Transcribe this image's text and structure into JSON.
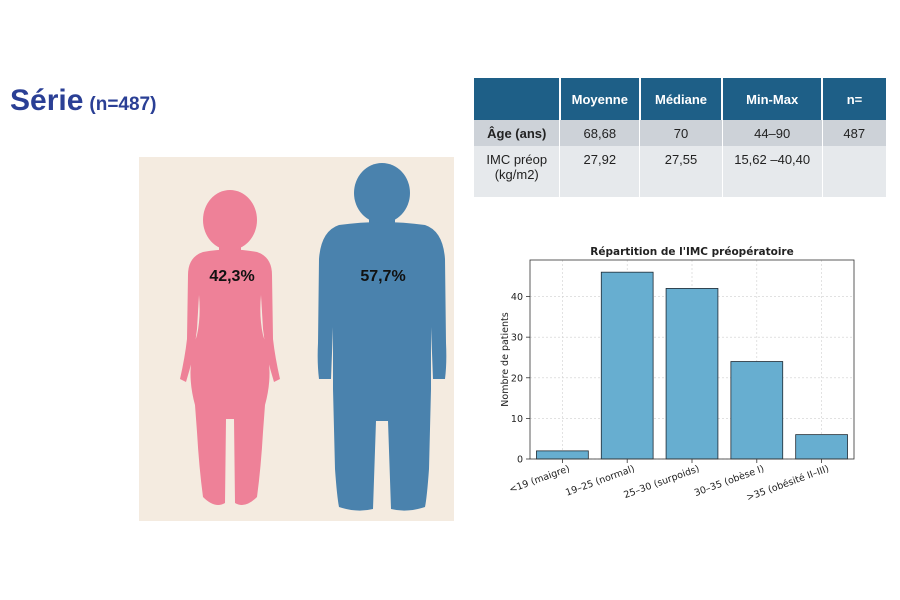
{
  "title": {
    "main": "Série",
    "sub": "(n=487)"
  },
  "gender": {
    "female_pct": "42,3%",
    "male_pct": "57,7%",
    "female_color": "#ee8198",
    "male_color": "#4a82ad"
  },
  "stats_table": {
    "headers": [
      "",
      "Moyenne",
      "Médiane",
      "Min-Max",
      "n="
    ],
    "rows": [
      [
        "Âge (ans)",
        "68,68",
        "70",
        "44–90",
        "487"
      ],
      [
        "IMC préop\n(kg/m2)",
        "27,92",
        "27,55",
        "15,62 –40,40",
        ""
      ]
    ]
  },
  "chart_data": {
    "type": "bar",
    "title": "Répartition de l'IMC préopératoire",
    "xlabel": "",
    "ylabel": "Nombre de patients",
    "categories": [
      "<19 (maigre)",
      "19–25 (normal)",
      "25–30 (surpoids)",
      "30–35 (obèse I)",
      ">35 (obésité II–III)"
    ],
    "values": [
      2,
      46,
      42,
      24,
      6
    ],
    "ylim": [
      0,
      49
    ],
    "yticks": [
      0,
      10,
      20,
      30,
      40
    ],
    "grid": true,
    "bar_color": "#67aed0"
  }
}
